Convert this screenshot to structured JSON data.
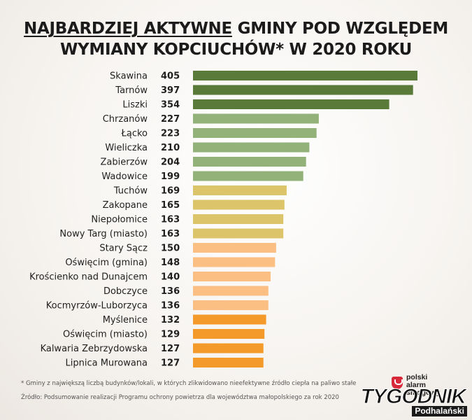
{
  "title": {
    "underlined": "NAJBARDZIEJ AKTYWNE",
    "rest_line1": " GMINY POD WZGLĘDEM",
    "line2": "WYMIANY KOPCIUCHÓW* W 2020 ROKU"
  },
  "chart_data": {
    "type": "bar",
    "orientation": "horizontal",
    "title": "NAJBARDZIEJ AKTYWNE GMINY POD WZGLĘDEM WYMIANY KOPCIUCHÓW* W 2020 ROKU",
    "categories": [
      "Skawina",
      "Tarnów",
      "Liszki",
      "Chrzanów",
      "Łącko",
      "Wieliczka",
      "Zabierzów",
      "Wadowice",
      "Tuchów",
      "Zakopane",
      "Niepołomice",
      "Nowy Targ (miasto)",
      "Stary Sącz",
      "Oświęcim (gmina)",
      "Krościenko nad Dunajcem",
      "Dobczyce",
      "Kocmyrzów-Luborzyca",
      "Myślenice",
      "Oświęcim (miasto)",
      "Kalwaria Zebrzydowska",
      "Lipnica Murowana"
    ],
    "values": [
      405,
      397,
      354,
      227,
      223,
      210,
      204,
      199,
      169,
      165,
      163,
      163,
      150,
      148,
      140,
      136,
      136,
      132,
      129,
      127,
      127
    ],
    "colors": [
      "#5a7a3a",
      "#5a7a3a",
      "#5a7a3a",
      "#93b27a",
      "#93b27a",
      "#93b27a",
      "#93b27a",
      "#93b27a",
      "#dcc46a",
      "#dcc46a",
      "#dcc46a",
      "#dcc46a",
      "#fbbf84",
      "#fbbf84",
      "#fbbf84",
      "#fbbf84",
      "#fbbf84",
      "#f39a2a",
      "#f39a2a",
      "#f39a2a",
      "#f39a2a"
    ],
    "xlim": [
      0,
      405
    ],
    "grid": false,
    "legend": "none"
  },
  "footnotes": {
    "note": "* Gminy z największą liczbą budynków/lokali, w których zlikwidowano nieefektywne źródło ciepła na paliwo stałe",
    "source": "Źródło: Podsumowanie realizacji Programu ochrony powietrza dla województwa małopolskiego za rok 2020"
  },
  "logos": {
    "pas": [
      "polski",
      "alarm",
      "smogowy"
    ],
    "tp_main": "TYGODNIK",
    "tp_sub": "Podhalański"
  }
}
